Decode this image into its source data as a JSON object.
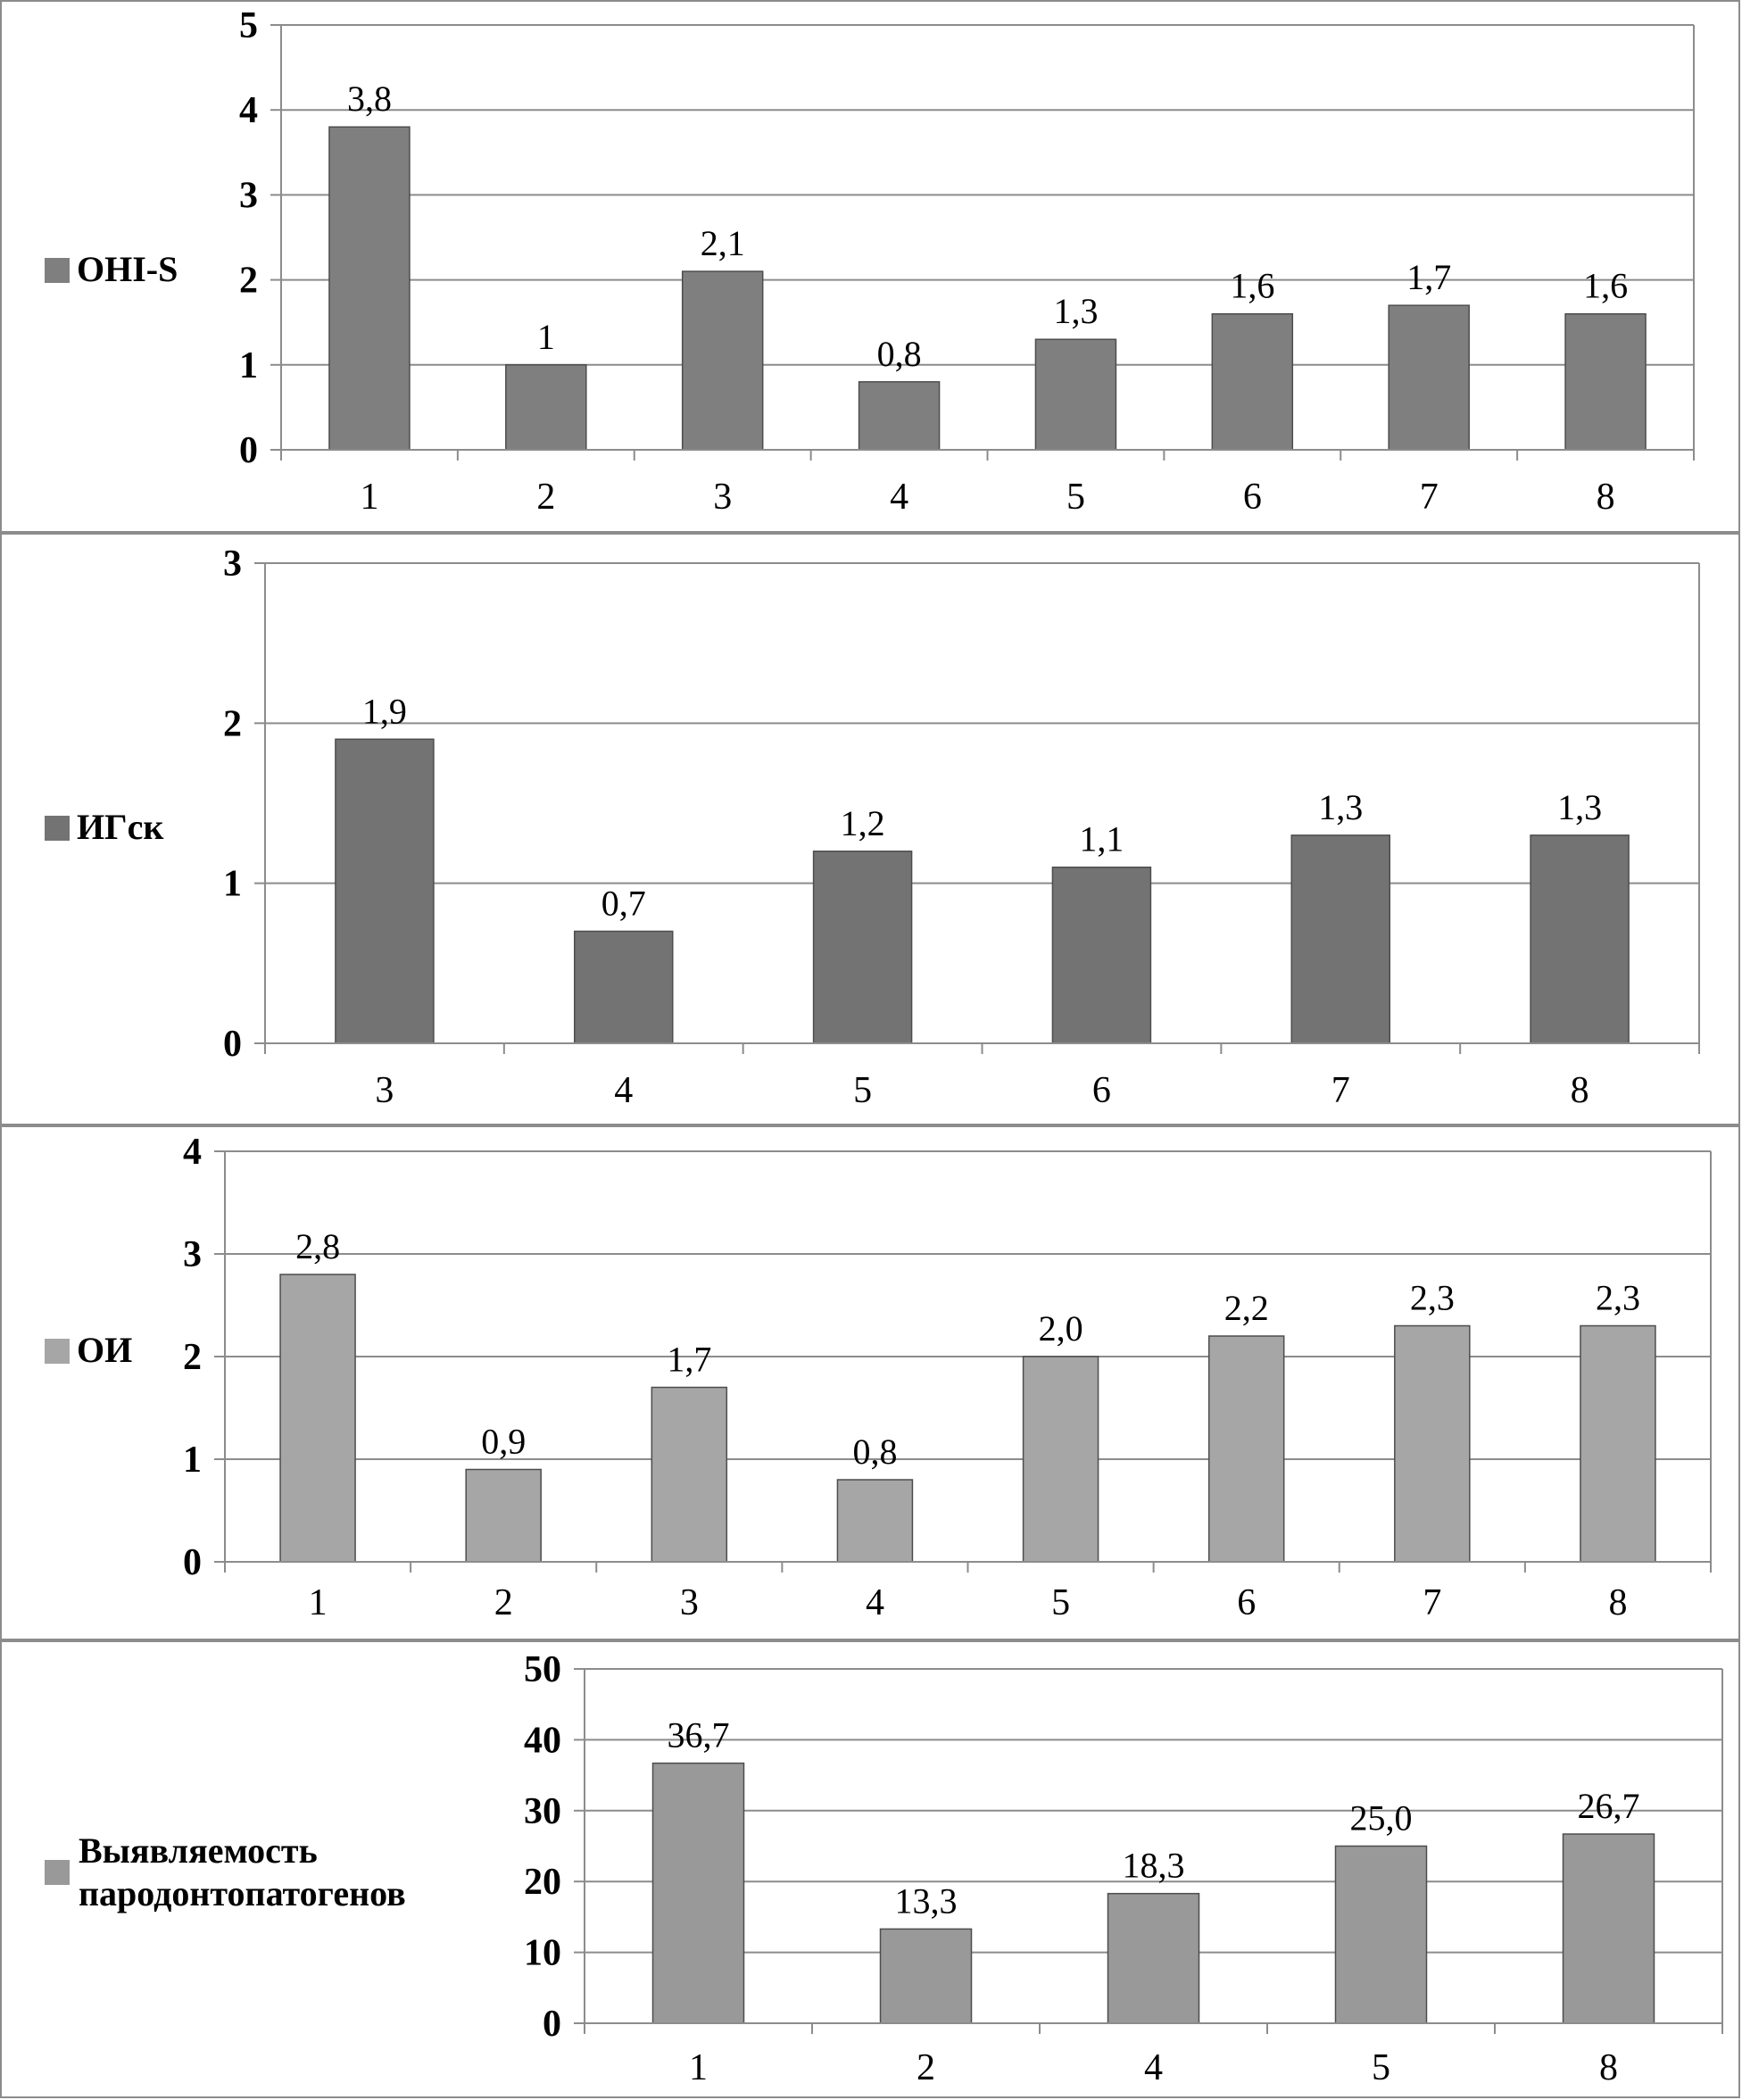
{
  "chart_data": [
    {
      "type": "bar",
      "categories": [
        "1",
        "2",
        "3",
        "4",
        "5",
        "6",
        "7",
        "8"
      ],
      "series": [
        {
          "name": "OHI-S",
          "values": [
            3.8,
            1,
            2.1,
            0.8,
            1.3,
            1.6,
            1.7,
            1.6
          ]
        }
      ],
      "data_labels": [
        "3,8",
        "1",
        "2,1",
        "0,8",
        "1,3",
        "1,6",
        "1,7",
        "1,6"
      ],
      "yticks": [
        "0",
        "1",
        "2",
        "3",
        "4",
        "5"
      ],
      "ylim": [
        0,
        5
      ],
      "grid": true,
      "legend_position": "left",
      "color": "#7f7f7f"
    },
    {
      "type": "bar",
      "categories": [
        "3",
        "4",
        "5",
        "6",
        "7",
        "8"
      ],
      "series": [
        {
          "name": "ИГск",
          "values": [
            1.9,
            0.7,
            1.2,
            1.1,
            1.3,
            1.3
          ]
        }
      ],
      "data_labels": [
        "1,9",
        "0,7",
        "1,2",
        "1,1",
        "1,3",
        "1,3"
      ],
      "yticks": [
        "0",
        "1",
        "2",
        "3"
      ],
      "ylim": [
        0,
        3
      ],
      "grid": true,
      "legend_position": "left",
      "color": "#737373"
    },
    {
      "type": "bar",
      "categories": [
        "1",
        "2",
        "3",
        "4",
        "5",
        "6",
        "7",
        "8"
      ],
      "series": [
        {
          "name": "ОИ",
          "values": [
            2.8,
            0.9,
            1.7,
            0.8,
            2.0,
            2.2,
            2.3,
            2.3
          ]
        }
      ],
      "data_labels": [
        "2,8",
        "0,9",
        "1,7",
        "0,8",
        "2,0",
        "2,2",
        "2,3",
        "2,3"
      ],
      "yticks": [
        "0",
        "1",
        "2",
        "3",
        "4"
      ],
      "ylim": [
        0,
        4
      ],
      "grid": true,
      "legend_position": "left",
      "color": "#a6a6a6"
    },
    {
      "type": "bar",
      "categories": [
        "1",
        "2",
        "4",
        "5",
        "8"
      ],
      "series": [
        {
          "name": "Выявляемость\nпародонтопатогенов",
          "values": [
            36.7,
            13.3,
            18.3,
            25.0,
            26.7
          ]
        }
      ],
      "data_labels": [
        "36,7",
        "13,3",
        "18,3",
        "25,0",
        "26,7"
      ],
      "yticks": [
        "0",
        "10",
        "20",
        "30",
        "40",
        "50"
      ],
      "ylim": [
        0,
        50
      ],
      "grid": true,
      "legend_position": "left",
      "color": "#999999"
    }
  ]
}
